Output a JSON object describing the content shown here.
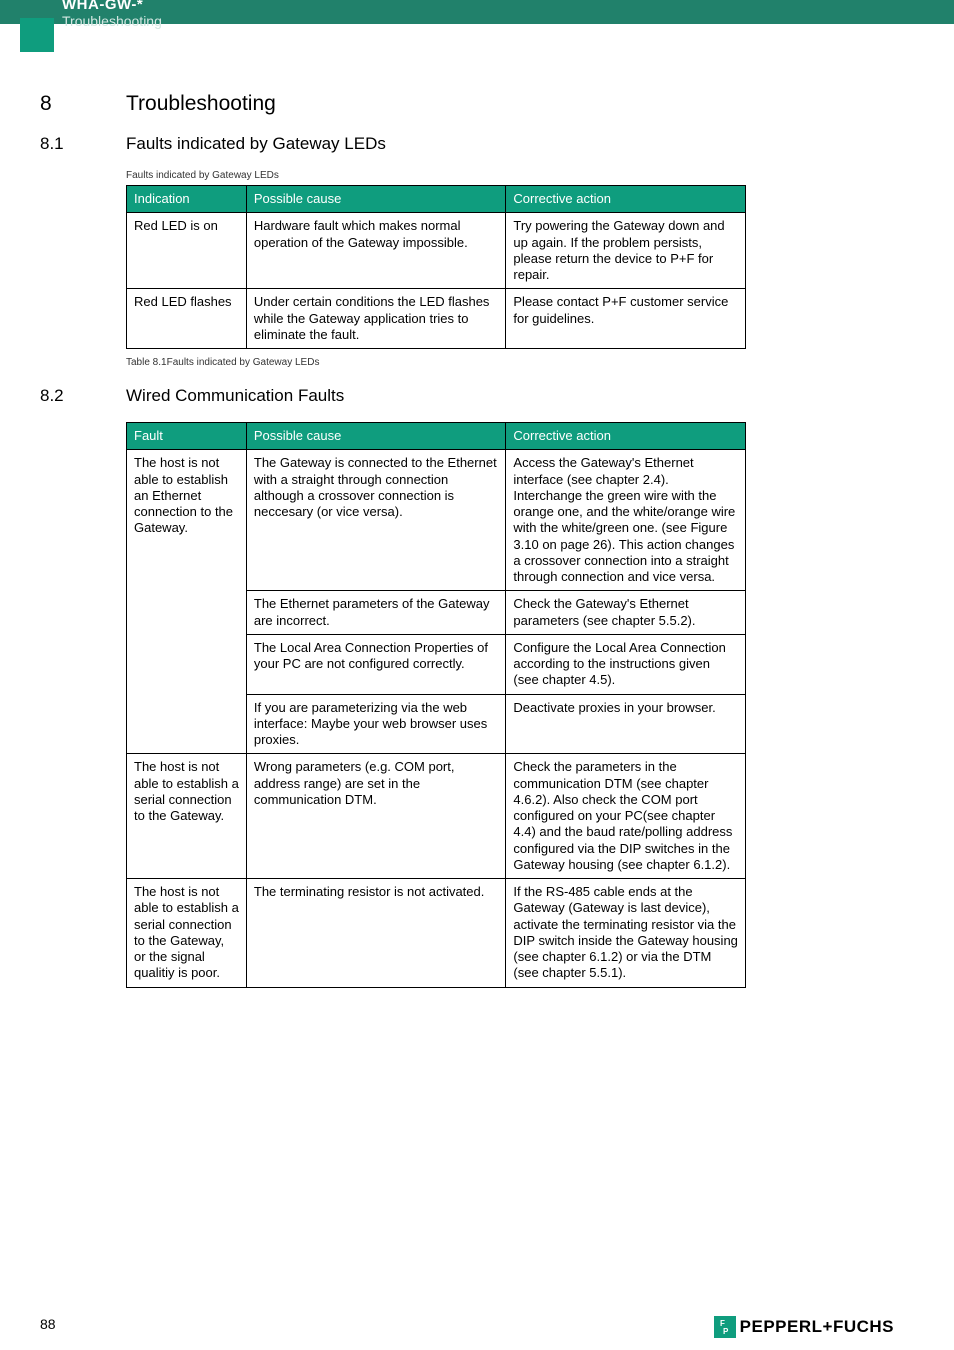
{
  "header": {
    "title": "WHA-GW-*",
    "subtitle": "Troubleshooting"
  },
  "section": {
    "num": "8",
    "title": "Troubleshooting"
  },
  "sub1": {
    "num": "8.1",
    "title": "Faults indicated by Gateway LEDs",
    "caption": "Faults indicated by Gateway LEDs",
    "footer": "Table 8.1Faults indicated by Gateway LEDs",
    "headers": {
      "c1": "Indication",
      "c2": "Possible cause",
      "c3": "Corrective action"
    },
    "rows": [
      {
        "c1": "Red LED is on",
        "c2": "Hardware fault which makes normal operation of the Gateway impossible.",
        "c3": "Try powering the Gateway down and up again. If the problem persists, please return the device to P+F for repair."
      },
      {
        "c1": "Red LED flashes",
        "c2": "Under certain conditions the LED flashes while the Gateway application tries to eliminate the fault.",
        "c3": "Please contact P+F customer service for guidelines."
      }
    ]
  },
  "sub2": {
    "num": "8.2",
    "title": "Wired Communication Faults",
    "headers": {
      "c1": "Fault",
      "c2": "Possible cause",
      "c3": "Corrective action"
    },
    "rows": [
      {
        "c1": "The host is not able to establish an Ethernet connection to the Gateway.",
        "c2": "The Gateway is connected to the Ethernet with a straight through connection although a crossover connection is neccesary (or vice versa).",
        "c3": "Access the Gateway's Ethernet interface (see chapter 2.4). Interchange the green wire with the orange one, and the white/orange wire with the white/green one. (see Figure 3.10 on page 26). This action changes a crossover connection into a straight through connection and vice versa."
      },
      {
        "c1": "",
        "c2": "The Ethernet parameters of the Gateway are incorrect.",
        "c3": "Check the Gateway's Ethernet parameters (see chapter 5.5.2)."
      },
      {
        "c1": "",
        "c2": "The Local Area Connection Properties of your PC are not configured correctly.",
        "c3": "Configure the Local Area Connection according to the instructions given (see chapter 4.5)."
      },
      {
        "c1": "",
        "c2": "If you are parameterizing via the web interface: Maybe your web browser uses proxies.",
        "c3": "Deactivate proxies in your browser."
      },
      {
        "c1": "The host is not able to establish a serial connection to the Gateway.",
        "c2": "Wrong parameters (e.g. COM port, address range) are set in the communication DTM.",
        "c3": "Check the parameters in the communication DTM (see chapter 4.6.2). Also check the COM port configured on your PC(see chapter 4.4) and the baud rate/polling address configured via the DIP switches in the Gateway housing (see chapter 6.1.2)."
      },
      {
        "c1": "The host is not able to establish a serial connection to the Gateway, or the signal qualitiy is poor.",
        "c2": "The terminating resistor is not activated.",
        "c3": "If the RS-485 cable ends at the Gateway (Gateway is last device), activate the terminating resistor via the DIP switch inside the Gateway housing (see chapter 6.1.2) or via the DTM (see chapter 5.5.1)."
      }
    ]
  },
  "footer": {
    "page": "88",
    "brand": "PEPPERL+FUCHS"
  }
}
